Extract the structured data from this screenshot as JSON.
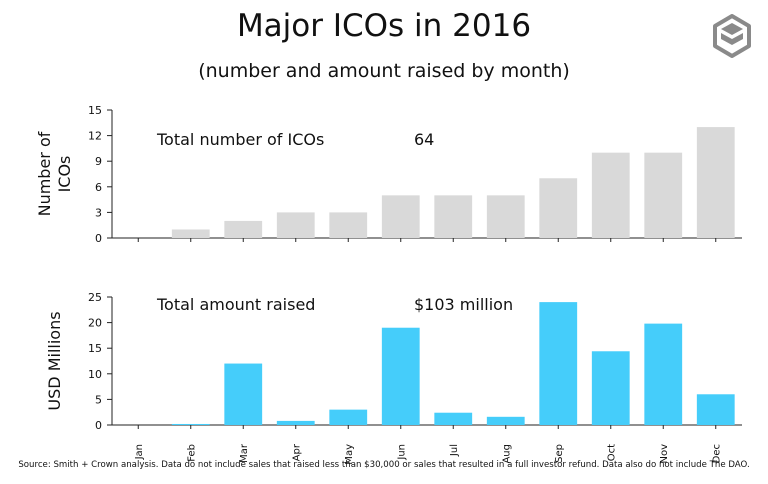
{
  "title": "Major ICOs in 2016",
  "subtitle": "(number and amount raised by month)",
  "logo": {
    "icon": "stacked-s-logo",
    "color": "#8a8a8a"
  },
  "source_note": "Source: Smith + Crown analysis. Data do not include sales that raised less than $30,000 or sales that resulted in a full investor refund. Data also do not include The DAO.",
  "chart_data": [
    {
      "type": "bar",
      "categories": [
        "Jan",
        "Feb",
        "Mar",
        "Apr",
        "May",
        "Jun",
        "Jul",
        "Aug",
        "Sep",
        "Oct",
        "Nov",
        "Dec"
      ],
      "values": [
        0,
        1,
        2,
        3,
        3,
        5,
        5,
        5,
        7,
        10,
        10,
        13
      ],
      "ylabel": "Number of ICOs",
      "ylim": [
        0,
        15
      ],
      "yticks": [
        0,
        3,
        6,
        9,
        12,
        15
      ],
      "annotation_label": "Total number of ICOs",
      "annotation_value": "64",
      "bar_color": "#d9d9d9",
      "show_x_labels": false,
      "grid": false
    },
    {
      "type": "bar",
      "categories": [
        "Jan",
        "Feb",
        "Mar",
        "Apr",
        "May",
        "Jun",
        "Jul",
        "Aug",
        "Sep",
        "Oct",
        "Nov",
        "Dec"
      ],
      "values": [
        0,
        0.2,
        12,
        0.8,
        3,
        19,
        2.4,
        1.6,
        24,
        14.4,
        19.8,
        6
      ],
      "ylabel": "USD Millions",
      "ylim": [
        0,
        25
      ],
      "yticks": [
        0,
        5,
        10,
        15,
        20,
        25
      ],
      "annotation_label": "Total amount raised",
      "annotation_value": "$103 million",
      "bar_color": "#45cdfa",
      "show_x_labels": true,
      "grid": false
    }
  ]
}
